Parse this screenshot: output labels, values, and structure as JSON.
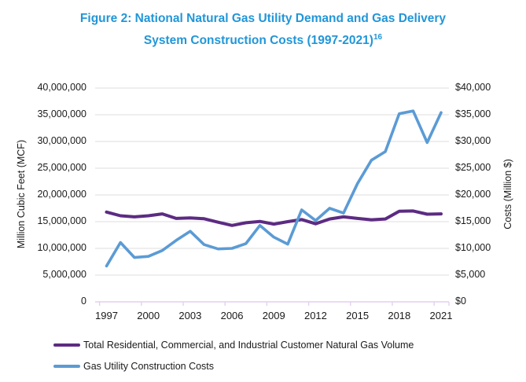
{
  "title": {
    "line1": "Figure 2: National Natural Gas Utility Demand and Gas Delivery",
    "line2": "System Construction Costs (1997-2021)",
    "superscript": "16",
    "color": "#2196d8"
  },
  "chart_data": {
    "type": "line",
    "x": [
      1997,
      1998,
      1999,
      2000,
      2001,
      2002,
      2003,
      2004,
      2005,
      2006,
      2007,
      2008,
      2009,
      2010,
      2011,
      2012,
      2013,
      2014,
      2015,
      2016,
      2017,
      2018,
      2019,
      2020,
      2021
    ],
    "x_tick_labels": [
      "1997",
      "2000",
      "2003",
      "2006",
      "2009",
      "2012",
      "2015",
      "2018",
      "2021"
    ],
    "left_axis": {
      "label": "Million Cubic Feet (MCF)",
      "min": 0,
      "max": 40000000,
      "step": 5000000,
      "tick_labels": [
        "0",
        "5,000,000",
        "10,000,000",
        "15,000,000",
        "20,000,000",
        "25,000,000",
        "30,000,000",
        "35,000,000",
        "40,000,000"
      ]
    },
    "right_axis": {
      "label": "Costs (Million $)",
      "min": 0,
      "max": 40000,
      "step": 5000,
      "tick_labels": [
        "$0",
        "$5,000",
        "$10,000",
        "$15,000",
        "$20,000",
        "$25,000",
        "$30,000",
        "$35,000",
        "$40,000"
      ]
    },
    "series": [
      {
        "name": "Total Residential, Commercial, and Industrial Customer Natural Gas Volume",
        "axis": "left",
        "color": "#5c2b82",
        "stroke_width": 4,
        "values": [
          16800000,
          16100000,
          15900000,
          16100000,
          16450000,
          15600000,
          15700000,
          15550000,
          14900000,
          14300000,
          14800000,
          15050000,
          14550000,
          15000000,
          15400000,
          14600000,
          15500000,
          15900000,
          15600000,
          15350000,
          15500000,
          16950000,
          17000000,
          16400000,
          16450000
        ]
      },
      {
        "name": "Gas Utility Construction Costs",
        "axis": "right",
        "color": "#5b9bd5",
        "stroke_width": 3.6,
        "values": [
          6700,
          11100,
          8300,
          8500,
          9600,
          11500,
          13200,
          10700,
          9900,
          10000,
          10900,
          14300,
          12100,
          10800,
          17200,
          15200,
          17500,
          16600,
          22100,
          26500,
          28100,
          35200,
          35700,
          29800,
          35400
        ]
      }
    ],
    "grid": true,
    "gridline_color": "#dcdcdc",
    "x_axis_color": "#e4cff2",
    "legend_position": "bottom-left"
  }
}
